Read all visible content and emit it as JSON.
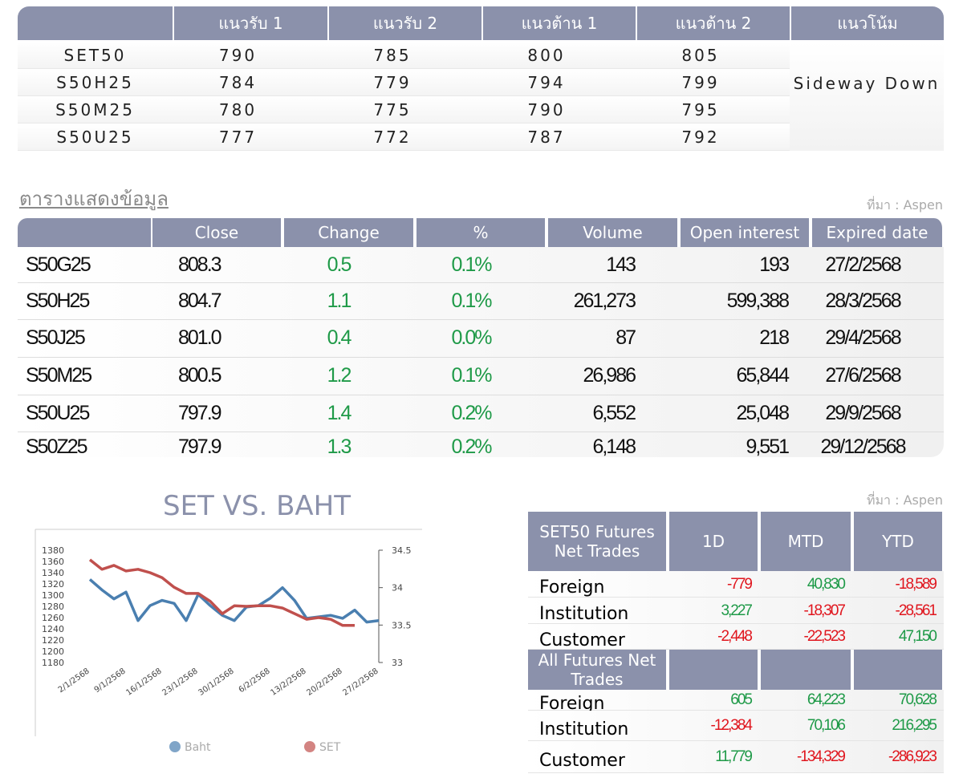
{
  "levels_table": {
    "headers": [
      "แนวรับ 1",
      "แนวรับ 2",
      "แนวต้าน 1",
      "แนวต้าน 2",
      "แนวโน้ม"
    ],
    "rows": [
      [
        "SET50",
        "790",
        "785",
        "800",
        "805"
      ],
      [
        "S50H25",
        "784",
        "779",
        "794",
        "799"
      ],
      [
        "S50M25",
        "780",
        "775",
        "790",
        "795"
      ],
      [
        "S50U25",
        "777",
        "772",
        "787",
        "792"
      ]
    ],
    "trend": "Sideway Down"
  },
  "data_table": {
    "title": "ตารางแสดงข้อมูล",
    "source": "ที่มา : Aspen",
    "headers": [
      "Close",
      "Change",
      "%",
      "Volume",
      "Open interest",
      "Expired date"
    ],
    "rows": [
      [
        "S50G25",
        "808.3",
        "0.5",
        "0.1%",
        "143",
        "193",
        "27/2/2568"
      ],
      [
        "S50H25",
        "804.7",
        "1.1",
        "0.1%",
        "261,273",
        "599,388",
        "28/3/2568"
      ],
      [
        "S50J25",
        "801.0",
        "0.4",
        "0.0%",
        "87",
        "218",
        "29/4/2568"
      ],
      [
        "S50M25",
        "800.5",
        "1.2",
        "0.1%",
        "26,986",
        "65,844",
        "27/6/2568"
      ],
      [
        "S50U25",
        "797.9",
        "1.4",
        "0.2%",
        "6,552",
        "25,048",
        "29/9/2568"
      ],
      [
        "S50Z25",
        "797.9",
        "1.3",
        "0.2%",
        "6,148",
        "9,551",
        "29/12/2568"
      ]
    ]
  },
  "chart_data": {
    "type": "line",
    "title": "SET VS. BAHT",
    "x": [
      "2/1/2568",
      null,
      null,
      "9/1/2568",
      null,
      null,
      "16/1/2568",
      null,
      null,
      "23/1/2568",
      null,
      null,
      "30/1/2568",
      null,
      null,
      "6/2/2568",
      null,
      null,
      "13/2/2568",
      null,
      null,
      "20/2/2568",
      null,
      null,
      "27/2/2568"
    ],
    "series": [
      {
        "name": "Baht",
        "color": "#4a7fb0",
        "axis": "y2",
        "values": [
          34.11,
          33.97,
          33.85,
          33.94,
          33.56,
          33.76,
          33.83,
          33.79,
          33.56,
          33.91,
          33.76,
          33.63,
          33.56,
          33.74,
          33.76,
          33.86,
          34.0,
          33.83,
          33.59,
          33.61,
          33.63,
          33.59,
          33.7,
          33.54,
          33.56
        ]
      },
      {
        "name": "SET",
        "color": "#c0504d",
        "values": [
          1363,
          1346,
          1353,
          1343,
          1346,
          1340,
          1331,
          1314,
          1303,
          1303,
          1289,
          1267,
          1281,
          1280,
          1281,
          1281,
          1277,
          1267,
          1257,
          1260,
          1257,
          1246,
          1246,
          null,
          null
        ]
      }
    ],
    "ylim": [
      1180,
      1380
    ],
    "yticks": [
      1180,
      1200,
      1220,
      1240,
      1260,
      1280,
      1300,
      1320,
      1340,
      1360,
      1380
    ],
    "y2lim": [
      33,
      34.5
    ],
    "y2ticks": [
      33,
      33.5,
      34,
      34.5
    ]
  },
  "net_trades": {
    "source": "ที่มา : Aspen",
    "columns": [
      "1D",
      "MTD",
      "YTD"
    ],
    "sections": [
      {
        "title": "SET50 Futures Net Trades",
        "rows": [
          {
            "label": "Foreign",
            "values": [
              "-779",
              "40,830",
              "-18,589"
            ]
          },
          {
            "label": "Institution",
            "values": [
              "3,227",
              "-18,307",
              "-28,561"
            ]
          },
          {
            "label": "Customer",
            "values": [
              "-2,448",
              "-22,523",
              "47,150"
            ]
          }
        ]
      },
      {
        "title": "All Futures Net Trades",
        "rows": [
          {
            "label": "Foreign",
            "values": [
              "605",
              "64,223",
              "70,628"
            ]
          },
          {
            "label": "Institution",
            "values": [
              "-12,384",
              "70,106",
              "216,295"
            ]
          },
          {
            "label": "Customer",
            "values": [
              "11,779",
              "-134,329",
              "-286,923"
            ]
          }
        ]
      }
    ]
  }
}
